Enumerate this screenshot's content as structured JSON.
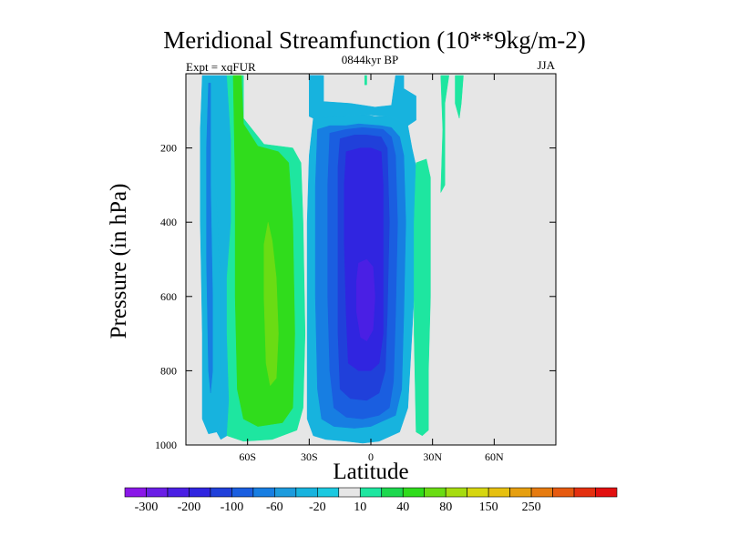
{
  "chart_data": {
    "type": "heatmap",
    "title": "Meridional Streamfunction (10**9kg/m-2)",
    "subtitle_left": "Expt = xqFUR",
    "subtitle_center": "0844kyr BP",
    "subtitle_right": "JJA",
    "xlabel": "Latitude",
    "ylabel": "Pressure (in hPa)",
    "xlim": [
      -90,
      90
    ],
    "ylim": [
      1000,
      0
    ],
    "x_ticks": [
      {
        "value": -60,
        "label": "60S"
      },
      {
        "value": -30,
        "label": "30S"
      },
      {
        "value": 0,
        "label": "0"
      },
      {
        "value": 30,
        "label": "30N"
      },
      {
        "value": 60,
        "label": "60N"
      }
    ],
    "y_ticks": [
      {
        "value": 200,
        "label": "200"
      },
      {
        "value": 400,
        "label": "400"
      },
      {
        "value": 600,
        "label": "600"
      },
      {
        "value": 800,
        "label": "800"
      },
      {
        "value": 1000,
        "label": "1000"
      }
    ],
    "colorbar": {
      "colors": [
        "#8a17e8",
        "#6a1ee6",
        "#4a1fe4",
        "#3025e0",
        "#2040da",
        "#1a5ee0",
        "#177ee2",
        "#1c9bdd",
        "#17b3de",
        "#1bc9e0",
        "#e6e6e6",
        "#1ee6a0",
        "#1cd84e",
        "#30dc1c",
        "#6adc14",
        "#a6dc10",
        "#d6d610",
        "#e6c010",
        "#e69f10",
        "#e67b10",
        "#e65a10",
        "#e43010",
        "#e21010"
      ],
      "labels": [
        {
          "after": 0,
          "text": "-300"
        },
        {
          "after": 2,
          "text": "-200"
        },
        {
          "after": 4,
          "text": "-100"
        },
        {
          "after": 6,
          "text": "-60"
        },
        {
          "after": 8,
          "text": "-20"
        },
        {
          "after": 10,
          "text": "10"
        },
        {
          "after": 12,
          "text": "40"
        },
        {
          "after": 14,
          "text": "80"
        },
        {
          "after": 16,
          "text": "150"
        },
        {
          "after": 18,
          "text": "250"
        }
      ]
    },
    "background_color": "#e6e6e6",
    "regions": [
      {
        "name": "southern-outer-cyan",
        "color": "#17b3de",
        "poly": [
          [
            -82,
            5
          ],
          [
            -77,
            5
          ],
          [
            -77,
            150
          ],
          [
            -75,
            330
          ],
          [
            -73,
            600
          ],
          [
            -73,
            800
          ],
          [
            -72,
            915
          ],
          [
            -75,
            965
          ],
          [
            -79,
            970
          ],
          [
            -82,
            930
          ],
          [
            -82,
            700
          ],
          [
            -83,
            400
          ],
          [
            -83,
            150
          ]
        ]
      },
      {
        "name": "southern-outer-blue",
        "color": "#177ee2",
        "poly": [
          [
            -79,
            25
          ],
          [
            -78,
            25
          ],
          [
            -78,
            300
          ],
          [
            -77,
            600
          ],
          [
            -77,
            800
          ],
          [
            -78,
            860
          ],
          [
            -79,
            800
          ],
          [
            -80,
            500
          ],
          [
            -80,
            200
          ]
        ]
      },
      {
        "name": "southern-ferrel-cyan",
        "color": "#17b3de",
        "poly": [
          [
            -77,
            5
          ],
          [
            -70,
            5
          ],
          [
            -68,
            180
          ],
          [
            -68,
            400
          ],
          [
            -70,
            550
          ],
          [
            -70,
            700
          ],
          [
            -69,
            880
          ],
          [
            -70,
            975
          ],
          [
            -73,
            985
          ],
          [
            -75,
            965
          ],
          [
            -72,
            915
          ],
          [
            -73,
            800
          ],
          [
            -73,
            600
          ],
          [
            -75,
            330
          ],
          [
            -77,
            150
          ]
        ]
      },
      {
        "name": "southern-ferrel-green-cyan",
        "color": "#1ee6a0",
        "poly": [
          [
            -70,
            5
          ],
          [
            -62,
            5
          ],
          [
            -62,
            120
          ],
          [
            -52,
            190
          ],
          [
            -38,
            200
          ],
          [
            -34,
            240
          ],
          [
            -33,
            400
          ],
          [
            -32,
            700
          ],
          [
            -33,
            900
          ],
          [
            -36,
            960
          ],
          [
            -48,
            985
          ],
          [
            -62,
            990
          ],
          [
            -70,
            975
          ],
          [
            -69,
            880
          ],
          [
            -70,
            700
          ],
          [
            -70,
            550
          ],
          [
            -68,
            400
          ],
          [
            -68,
            180
          ]
        ]
      },
      {
        "name": "southern-ferrel-green",
        "color": "#30dc1c",
        "poly": [
          [
            -67,
            5
          ],
          [
            -63,
            5
          ],
          [
            -62,
            135
          ],
          [
            -55,
            195
          ],
          [
            -45,
            210
          ],
          [
            -40,
            240
          ],
          [
            -38,
            400
          ],
          [
            -37,
            700
          ],
          [
            -38,
            900
          ],
          [
            -43,
            940
          ],
          [
            -55,
            950
          ],
          [
            -62,
            930
          ],
          [
            -65,
            850
          ],
          [
            -66,
            600
          ],
          [
            -66,
            300
          ]
        ]
      },
      {
        "name": "southern-ferrel-light-green",
        "color": "#6adc14",
        "poly": [
          [
            -50,
            400
          ],
          [
            -48,
            450
          ],
          [
            -46,
            550
          ],
          [
            -45,
            700
          ],
          [
            -46,
            820
          ],
          [
            -49,
            840
          ],
          [
            -51,
            780
          ],
          [
            -52,
            600
          ],
          [
            -52,
            460
          ]
        ]
      },
      {
        "name": "hadley-cyan",
        "color": "#17b3de",
        "poly": [
          [
            -28,
            120
          ],
          [
            -5,
            110
          ],
          [
            -3,
            110
          ],
          [
            2,
            115
          ],
          [
            8,
            115
          ],
          [
            12,
            120
          ],
          [
            18,
            140
          ],
          [
            20,
            200
          ],
          [
            22,
            250
          ],
          [
            22,
            500
          ],
          [
            20,
            700
          ],
          [
            18,
            900
          ],
          [
            14,
            965
          ],
          [
            10,
            975
          ],
          [
            4,
            990
          ],
          [
            -4,
            995
          ],
          [
            -12,
            990
          ],
          [
            -22,
            985
          ],
          [
            -28,
            975
          ],
          [
            -31,
            930
          ],
          [
            -31,
            700
          ],
          [
            -31,
            400
          ],
          [
            -30,
            220
          ]
        ]
      },
      {
        "name": "hadley-dodger-blue",
        "color": "#177ee2",
        "poly": [
          [
            -26,
            150
          ],
          [
            -20,
            140
          ],
          [
            -12,
            140
          ],
          [
            -6,
            135
          ],
          [
            5,
            140
          ],
          [
            10,
            145
          ],
          [
            14,
            170
          ],
          [
            16,
            220
          ],
          [
            17,
            400
          ],
          [
            16,
            650
          ],
          [
            15,
            850
          ],
          [
            12,
            920
          ],
          [
            6,
            935
          ],
          [
            0,
            950
          ],
          [
            -8,
            955
          ],
          [
            -18,
            950
          ],
          [
            -24,
            930
          ],
          [
            -26,
            850
          ],
          [
            -27,
            600
          ],
          [
            -27,
            300
          ]
        ]
      },
      {
        "name": "hadley-blue",
        "color": "#1a5ee0",
        "poly": [
          [
            -20,
            160
          ],
          [
            -12,
            150
          ],
          [
            -4,
            145
          ],
          [
            6,
            150
          ],
          [
            10,
            170
          ],
          [
            12,
            220
          ],
          [
            13,
            400
          ],
          [
            12,
            650
          ],
          [
            11,
            830
          ],
          [
            9,
            900
          ],
          [
            4,
            920
          ],
          [
            -4,
            930
          ],
          [
            -12,
            925
          ],
          [
            -18,
            900
          ],
          [
            -20,
            800
          ],
          [
            -21,
            600
          ],
          [
            -21,
            300
          ]
        ]
      },
      {
        "name": "hadley-medium-blue",
        "color": "#2040da",
        "poly": [
          [
            -15,
            175
          ],
          [
            -8,
            165
          ],
          [
            -2,
            165
          ],
          [
            5,
            170
          ],
          [
            8,
            200
          ],
          [
            9,
            400
          ],
          [
            8,
            650
          ],
          [
            7,
            800
          ],
          [
            4,
            860
          ],
          [
            -2,
            880
          ],
          [
            -10,
            875
          ],
          [
            -15,
            850
          ],
          [
            -16,
            700
          ],
          [
            -16,
            450
          ],
          [
            -16,
            250
          ]
        ]
      },
      {
        "name": "hadley-indigo",
        "color": "#3025e0",
        "poly": [
          [
            -12,
            210
          ],
          [
            -5,
            200
          ],
          [
            0,
            200
          ],
          [
            5,
            210
          ],
          [
            6,
            300
          ],
          [
            6,
            500
          ],
          [
            6,
            700
          ],
          [
            4,
            780
          ],
          [
            0,
            800
          ],
          [
            -6,
            800
          ],
          [
            -11,
            780
          ],
          [
            -12,
            650
          ],
          [
            -13,
            450
          ],
          [
            -13,
            300
          ]
        ]
      },
      {
        "name": "hadley-core-purple",
        "color": "#4a1fe4",
        "poly": [
          [
            -6,
            510
          ],
          [
            -2,
            500
          ],
          [
            1,
            520
          ],
          [
            2,
            600
          ],
          [
            1,
            690
          ],
          [
            -2,
            720
          ],
          [
            -5,
            710
          ],
          [
            -7,
            640
          ],
          [
            -7,
            560
          ]
        ]
      },
      {
        "name": "hadley-top-blue",
        "color": "#177ee2",
        "poly": [
          [
            -30,
            5
          ],
          [
            -24,
            5
          ],
          [
            -24,
            60
          ],
          [
            -28,
            90
          ]
        ]
      },
      {
        "name": "stratosphere-cyan",
        "color": "#17b3de",
        "poly": [
          [
            -30,
            5
          ],
          [
            -23,
            5
          ],
          [
            -23,
            75
          ],
          [
            -10,
            80
          ],
          [
            2,
            90
          ],
          [
            10,
            85
          ],
          [
            12,
            5
          ],
          [
            16,
            5
          ],
          [
            16,
            40
          ],
          [
            22,
            60
          ],
          [
            22,
            125
          ],
          [
            18,
            140
          ],
          [
            12,
            120
          ],
          [
            8,
            115
          ],
          [
            -3,
            110
          ],
          [
            -5,
            110
          ],
          [
            -28,
            120
          ],
          [
            -30,
            115
          ]
        ]
      },
      {
        "name": "northern-thin-green",
        "color": "#1ee6a0",
        "poly": [
          [
            -3,
            5
          ],
          [
            -2,
            5
          ],
          [
            -2,
            30
          ],
          [
            -3,
            30
          ]
        ]
      },
      {
        "name": "northern-upper-green",
        "color": "#1ee6a0",
        "poly": [
          [
            34,
            5
          ],
          [
            38,
            5
          ],
          [
            36,
            80
          ],
          [
            36,
            300
          ],
          [
            34,
            320
          ],
          [
            35,
            150
          ]
        ]
      },
      {
        "name": "northern-right-green",
        "color": "#1ee6a0",
        "poly": [
          [
            41,
            5
          ],
          [
            45,
            5
          ],
          [
            44,
            80
          ],
          [
            43,
            120
          ],
          [
            41,
            80
          ]
        ]
      },
      {
        "name": "northern-lower-green",
        "color": "#1ee6a0",
        "poly": [
          [
            22,
            240
          ],
          [
            27,
            230
          ],
          [
            29,
            280
          ],
          [
            29,
            600
          ],
          [
            28,
            800
          ],
          [
            28,
            960
          ],
          [
            25,
            975
          ],
          [
            22,
            965
          ],
          [
            21,
            700
          ],
          [
            21,
            400
          ]
        ]
      }
    ]
  }
}
